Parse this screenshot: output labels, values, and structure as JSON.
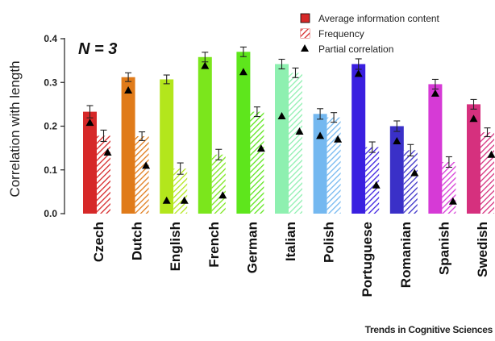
{
  "annotation": "N = 3",
  "source": "Trends in Cognitive Sciences",
  "chart_data": {
    "type": "bar",
    "ylabel": "Correlation with length",
    "ylim": [
      0,
      0.4
    ],
    "yticks": [
      "0.0",
      "0.1",
      "0.2",
      "0.3",
      "0.4"
    ],
    "categories": [
      "Czech",
      "Dutch",
      "English",
      "French",
      "German",
      "Italian",
      "Polish",
      "Portuguese",
      "Romanian",
      "Spanish",
      "Swedish"
    ],
    "colors": [
      "#d62828",
      "#e07b1a",
      "#b3e61c",
      "#7be61c",
      "#5ee61c",
      "#8ef0b0",
      "#74b8f0",
      "#3a1fe0",
      "#3a30c8",
      "#d63ad6",
      "#d6307e"
    ],
    "legend_position": "top-right",
    "series": [
      {
        "name": "Average information content",
        "style": "solid",
        "values": [
          0.233,
          0.312,
          0.307,
          0.358,
          0.37,
          0.342,
          0.228,
          0.342,
          0.2,
          0.296,
          0.25
        ],
        "errors": [
          0.014,
          0.01,
          0.01,
          0.011,
          0.011,
          0.011,
          0.012,
          0.012,
          0.012,
          0.011,
          0.011
        ]
      },
      {
        "name": "Frequency",
        "style": "hatched",
        "values": [
          0.178,
          0.177,
          0.103,
          0.135,
          0.233,
          0.322,
          0.22,
          0.152,
          0.145,
          0.118,
          0.186
        ],
        "errors": [
          0.013,
          0.01,
          0.013,
          0.012,
          0.011,
          0.011,
          0.011,
          0.012,
          0.013,
          0.012,
          0.01
        ]
      },
      {
        "name": "Partial correlation",
        "style": "triangle",
        "values": [
          0.208,
          0.282,
          0.03,
          0.338,
          0.324,
          0.223,
          0.178,
          0.32,
          0.166,
          0.275,
          0.217
        ],
        "values_2": [
          0.14,
          0.11,
          0.03,
          0.042,
          0.149,
          0.188,
          0.17,
          0.065,
          0.093,
          0.028,
          0.135
        ]
      }
    ]
  }
}
